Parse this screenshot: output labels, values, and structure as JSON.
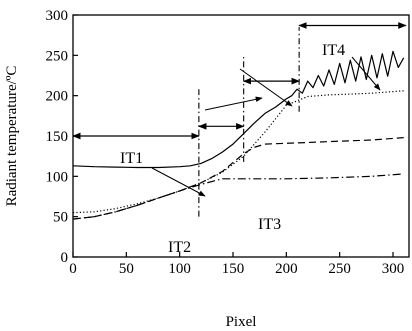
{
  "chart_data": {
    "type": "line",
    "xlabel": "Pixel",
    "ylabel": "Radiant temperature/ºC",
    "xlim": [
      0,
      315
    ],
    "ylim": [
      0,
      300
    ],
    "x_ticks": [
      0,
      50,
      100,
      150,
      200,
      250,
      300
    ],
    "y_ticks": [
      0,
      50,
      100,
      150,
      200,
      250,
      300
    ],
    "grid": false,
    "series": [
      {
        "style": "solid",
        "x": [
          0,
          20,
          40,
          60,
          80,
          100,
          110,
          120,
          130,
          140,
          150,
          160,
          170,
          180,
          190,
          200,
          205,
          210,
          215,
          220,
          225,
          230,
          235,
          240,
          245,
          250,
          255,
          260,
          265,
          270,
          275,
          280,
          285,
          290,
          295,
          300,
          305,
          310
        ],
        "y": [
          113,
          112,
          111.5,
          111,
          111,
          112,
          113,
          116,
          122,
          130,
          140,
          153,
          166,
          178,
          186,
          196,
          200,
          208,
          203,
          218,
          210,
          225,
          212,
          232,
          214,
          240,
          216,
          244,
          218,
          248,
          220,
          250,
          222,
          252,
          224,
          255,
          235,
          247
        ]
      },
      {
        "style": "dotted",
        "x": [
          0,
          20,
          40,
          60,
          80,
          100,
          120,
          140,
          160,
          180,
          200,
          220,
          240,
          260,
          280,
          300,
          310
        ],
        "y": [
          55,
          56,
          60,
          66,
          73,
          82,
          92,
          105,
          125,
          155,
          188,
          199,
          201,
          202,
          203,
          205,
          206
        ]
      },
      {
        "style": "dashed",
        "x": [
          0,
          20,
          40,
          60,
          80,
          100,
          120,
          140,
          150,
          160,
          170,
          180,
          200,
          220,
          240,
          260,
          280,
          300,
          310
        ],
        "y": [
          47,
          50,
          56,
          64,
          73,
          82,
          92,
          106,
          117,
          128,
          136,
          140,
          141,
          142,
          143,
          144,
          145,
          147,
          148
        ]
      },
      {
        "style": "dashdot",
        "x": [
          0,
          20,
          40,
          60,
          80,
          100,
          120,
          140,
          160,
          200,
          240,
          280,
          310
        ],
        "y": [
          47,
          50,
          56,
          64,
          73,
          82,
          90,
          97,
          97,
          97,
          98,
          100,
          103
        ]
      }
    ],
    "annotations": [
      {
        "label": "IT1",
        "range": [
          0,
          118
        ]
      },
      {
        "label": "IT2",
        "range": [
          118,
          160
        ]
      },
      {
        "label": "IT3",
        "range": [
          160,
          212
        ]
      },
      {
        "label": "IT4",
        "range": [
          212,
          312
        ]
      }
    ],
    "boundaries": [
      {
        "x": 118,
        "y_from": 50,
        "y_to": 208
      },
      {
        "x": 160,
        "y_from": 118,
        "y_to": 248
      },
      {
        "x": 212,
        "y_from": 180,
        "y_to": 285
      }
    ]
  }
}
